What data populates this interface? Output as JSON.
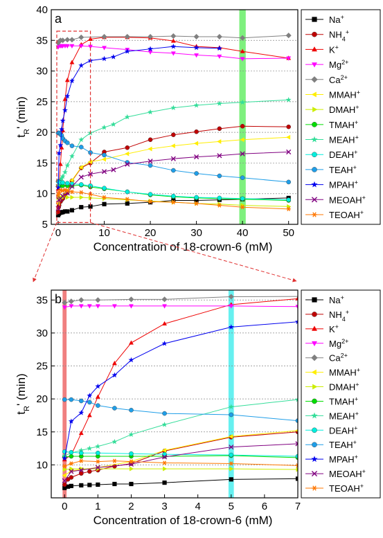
{
  "chart_data": [
    {
      "panel_label": "a",
      "type": "line",
      "xlabel": "Concentration of 18-crown-6 (mM)",
      "ylabel": "t_R' (min)",
      "xlim": [
        -1.5,
        52
      ],
      "ylim": [
        5,
        40
      ],
      "xticks": [
        0,
        10,
        20,
        30,
        40,
        50
      ],
      "yticks": [
        5,
        10,
        15,
        20,
        25,
        30,
        35,
        40
      ],
      "highlight_band": {
        "x_from": 39.3,
        "x_to": 40.7,
        "color": "#7ef07e"
      },
      "zoom_box": {
        "x_from": -0.3,
        "x_to": 7,
        "y_from": 5.3,
        "y_to": 36.5
      },
      "grid": "dashed-horizontal",
      "legend_placement": "right-outside",
      "series": [
        {
          "key": "na",
          "name": "Na",
          "sup": "+",
          "sub": "",
          "color": "#000000",
          "marker": "square",
          "x": [
            0,
            0.1,
            0.2,
            0.5,
            0.75,
            1,
            1.5,
            2,
            3,
            5,
            7,
            10,
            15,
            20,
            25,
            30,
            35,
            40,
            50
          ],
          "y": [
            6.5,
            6.7,
            6.8,
            6.9,
            6.95,
            7.0,
            7.1,
            7.1,
            7.3,
            7.8,
            7.9,
            8.3,
            8.4,
            8.6,
            8.9,
            8.9,
            9.0,
            9.1,
            9.3
          ]
        },
        {
          "key": "nh4",
          "name": "NH",
          "sup": "+",
          "sub": "4",
          "color": "#c00000",
          "marker": "circle",
          "x": [
            0,
            0.1,
            0.2,
            0.5,
            0.75,
            1,
            1.5,
            2,
            3,
            5,
            7,
            10,
            15,
            20,
            25,
            30,
            35,
            40,
            50
          ],
          "y": [
            7.0,
            7.8,
            8.1,
            8.7,
            9.0,
            9.2,
            9.8,
            10.2,
            12.1,
            14.2,
            15.0,
            16.8,
            17.5,
            18.8,
            19.6,
            20.1,
            20.6,
            21.0,
            20.9
          ]
        },
        {
          "key": "k",
          "name": "K",
          "sup": "+",
          "sub": "",
          "color": "#ee0000",
          "marker": "triangle",
          "x": [
            0,
            0.2,
            0.5,
            0.75,
            1,
            1.5,
            2,
            3,
            5,
            7,
            10,
            15,
            20,
            25,
            30,
            35,
            40,
            50
          ],
          "y": [
            10.8,
            11.5,
            14.8,
            17.5,
            20.3,
            25.4,
            28.5,
            31.4,
            34.3,
            35.2,
            35.5,
            35.5,
            35.4,
            34.9,
            34.0,
            33.8,
            33.2,
            32.1
          ]
        },
        {
          "key": "mg",
          "name": "Mg",
          "sup": "2+",
          "sub": "",
          "color": "#ff00ff",
          "marker": "triangle-down",
          "x": [
            0,
            0.2,
            0.5,
            0.75,
            1,
            1.5,
            2,
            3,
            5,
            7,
            10,
            15,
            20,
            25,
            30,
            35,
            40,
            50
          ],
          "y": [
            33.9,
            34.1,
            34.1,
            34.1,
            34.1,
            34.1,
            34.1,
            34.1,
            34.1,
            34.0,
            33.8,
            33.5,
            33.1,
            32.9,
            32.6,
            32.4,
            32.0,
            32.1
          ]
        },
        {
          "key": "ca",
          "name": "Ca",
          "sup": "2+",
          "sub": "",
          "color": "#808080",
          "marker": "diamond",
          "x": [
            0,
            0.2,
            0.5,
            1,
            2,
            3,
            5,
            10,
            15,
            20,
            25,
            30,
            35,
            40,
            50
          ],
          "y": [
            34.6,
            34.8,
            35.0,
            35.0,
            35.1,
            35.1,
            35.5,
            35.6,
            35.6,
            35.6,
            35.7,
            35.6,
            35.6,
            35.4,
            35.8
          ]
        },
        {
          "key": "mmah",
          "name": "MMAH",
          "sup": "+",
          "sub": "",
          "color": "#ffee00",
          "marker": "triangle-left",
          "x": [
            0,
            0.2,
            0.5,
            1,
            2,
            3,
            5,
            7,
            10,
            15,
            20,
            25,
            30,
            35,
            40,
            50
          ],
          "y": [
            8.4,
            9.1,
            9.3,
            9.6,
            10.5,
            12.2,
            14.3,
            15.2,
            15.6,
            16.5,
            17.3,
            17.8,
            18.2,
            18.5,
            18.8,
            19.2
          ]
        },
        {
          "key": "dmah",
          "name": "DMAH",
          "sup": "+",
          "sub": "",
          "color": "#ccee00",
          "marker": "triangle-right",
          "x": [
            0,
            0.2,
            0.5,
            1,
            2,
            3,
            5,
            7,
            10,
            15,
            20,
            25,
            30,
            35,
            40,
            50
          ],
          "y": [
            9.3,
            9.4,
            9.4,
            9.4,
            9.4,
            9.4,
            9.4,
            9.3,
            9.2,
            9.0,
            8.8,
            8.6,
            8.4,
            8.3,
            8.1,
            7.9
          ]
        },
        {
          "key": "tmah",
          "name": "TMAH",
          "sup": "+",
          "sub": "",
          "color": "#00dd00",
          "marker": "circle",
          "x": [
            0,
            0.2,
            0.5,
            1,
            2,
            3,
            5,
            7,
            10,
            15,
            20,
            25,
            30,
            35,
            40,
            50
          ],
          "y": [
            11.2,
            11.3,
            11.3,
            11.3,
            11.3,
            11.3,
            11.4,
            11.1,
            10.8,
            10.3,
            9.8,
            9.5,
            9.3,
            9.2,
            9.1,
            8.9
          ]
        },
        {
          "key": "meah",
          "name": "MEAH",
          "sup": "+",
          "sub": "",
          "color": "#33dd99",
          "marker": "star",
          "x": [
            0,
            0.2,
            0.5,
            0.75,
            1,
            1.5,
            2,
            3,
            5,
            7,
            10,
            12,
            15,
            20,
            25,
            30,
            35,
            40,
            50
          ],
          "y": [
            11.4,
            11.8,
            12.2,
            12.5,
            12.8,
            13.5,
            14.6,
            16.1,
            18.8,
            19.9,
            20.8,
            21.3,
            22.5,
            23.3,
            24.0,
            24.4,
            24.7,
            24.9,
            25.3
          ]
        },
        {
          "key": "deah",
          "name": "DEAH",
          "sup": "+",
          "sub": "",
          "color": "#00eedd",
          "marker": "circle",
          "x": [
            0,
            0.2,
            0.5,
            1,
            2,
            3,
            5,
            7,
            10,
            15,
            20,
            25,
            30,
            35,
            40,
            50
          ],
          "y": [
            12.0,
            11.9,
            11.8,
            11.8,
            11.7,
            11.6,
            11.5,
            11.3,
            10.9,
            10.3,
            9.9,
            9.6,
            9.4,
            9.3,
            9.2,
            9.0
          ]
        },
        {
          "key": "teah",
          "name": "TEAH",
          "sup": "+",
          "sub": "",
          "color": "#1f9ee8",
          "marker": "circle",
          "x": [
            0,
            0.2,
            0.5,
            0.75,
            1,
            1.5,
            2,
            3,
            5,
            7,
            10,
            15,
            20,
            25,
            30,
            35,
            40,
            50
          ],
          "y": [
            19.9,
            19.9,
            19.7,
            19.5,
            19.0,
            18.6,
            18.3,
            17.8,
            17.6,
            16.7,
            16.3,
            15.1,
            14.6,
            13.8,
            13.3,
            12.9,
            12.6,
            11.9
          ]
        },
        {
          "key": "mpah",
          "name": "MPAH",
          "sup": "+",
          "sub": "",
          "color": "#0000ee",
          "marker": "star",
          "x": [
            0,
            0.2,
            0.5,
            0.75,
            1,
            1.5,
            2,
            3,
            5,
            7,
            10,
            12,
            15,
            20,
            25,
            30,
            35
          ],
          "y": [
            11.0,
            16.6,
            17.9,
            20.5,
            21.9,
            23.6,
            25.9,
            28.4,
            30.9,
            31.7,
            32.0,
            32.3,
            33.2,
            33.6,
            34.0,
            33.8,
            33.7
          ]
        },
        {
          "key": "meoah",
          "name": "MEOAH",
          "sup": "+",
          "sub": "",
          "color": "#800080",
          "marker": "x",
          "x": [
            0,
            0.2,
            0.5,
            1,
            2,
            3,
            5,
            7,
            10,
            12,
            15,
            20,
            25,
            30,
            35,
            40,
            50
          ],
          "y": [
            7.6,
            9.0,
            9.2,
            9.6,
            10.1,
            11.2,
            12.7,
            13.2,
            13.6,
            13.9,
            14.8,
            15.3,
            15.7,
            16.0,
            16.2,
            16.5,
            16.8
          ]
        },
        {
          "key": "teoah",
          "name": "TEOAH",
          "sup": "+",
          "sub": "",
          "color": "#ff7700",
          "marker": "asterisk",
          "x": [
            0,
            0.2,
            0.5,
            1,
            1.5,
            2,
            3,
            5,
            7,
            10,
            15,
            20,
            25,
            30,
            35,
            40,
            50
          ],
          "y": [
            9.8,
            10.2,
            10.6,
            10.5,
            10.6,
            10.5,
            10.3,
            10.2,
            9.9,
            9.4,
            9.1,
            8.7,
            8.6,
            8.4,
            8.1,
            7.8,
            7.5
          ]
        }
      ]
    },
    {
      "panel_label": "b",
      "type": "line",
      "xlabel": "Concentration of 18-crown-6 (mM)",
      "ylabel": "t_R' (min)",
      "xlim": [
        -0.4,
        7
      ],
      "ylim": [
        5,
        36.5
      ],
      "xticks": [
        0,
        1,
        2,
        3,
        4,
        5,
        6,
        7
      ],
      "yticks": [
        10,
        15,
        20,
        25,
        30,
        35
      ],
      "highlight_bands": [
        {
          "x_from": -0.06,
          "x_to": 0.06,
          "color": "#f08080"
        },
        {
          "x_from": 4.92,
          "x_to": 5.08,
          "color": "#66f0f0"
        }
      ],
      "grid": "dashed-horizontal",
      "legend_placement": "right-outside",
      "series_from_panel": "a"
    }
  ],
  "legend_order": [
    "na",
    "nh4",
    "k",
    "mg",
    "ca",
    "mmah",
    "dmah",
    "tmah",
    "meah",
    "deah",
    "teah",
    "mpah",
    "meoah",
    "teoah"
  ]
}
